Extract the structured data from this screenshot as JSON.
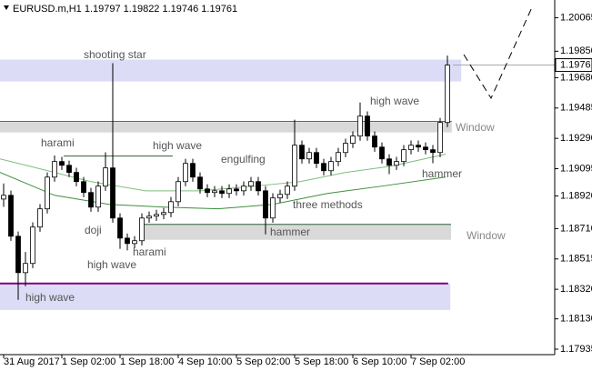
{
  "chart_data": {
    "type": "candlestick",
    "title": "EURUSD.m,H1  1.19797 1.19822 1.19746 1.19761",
    "last_price": {
      "value": 1.19761,
      "label": "1.19761"
    },
    "ylim": [
      1.179,
      1.2015
    ],
    "xlim": [
      -0.5,
      75.75
    ],
    "yticks": [
      1.20065,
      {
        "value": 1.1985,
        "label": "1.19850"
      },
      {
        "value": 1.1968,
        "label": "1.19680"
      },
      1.19485,
      {
        "value": 1.1929,
        "label": "1.19290"
      },
      1.19095,
      {
        "value": 1.1892,
        "label": "1.18920"
      },
      {
        "value": 1.1871,
        "label": "1.18710"
      },
      1.18515,
      {
        "value": 1.1832,
        "label": "1.18320"
      },
      {
        "value": 1.1813,
        "label": "1.18130"
      },
      1.17935
    ],
    "xticks": [
      {
        "value": 0,
        "label": "31 Aug 2017"
      },
      {
        "value": 8,
        "label": "1 Sep 02:00"
      },
      {
        "value": 16,
        "label": "1 Sep 18:00"
      },
      {
        "value": 24,
        "label": "4 Sep 10:00"
      },
      {
        "value": 32,
        "label": "5 Sep 02:00"
      },
      {
        "value": 40,
        "label": "5 Sep 18:00"
      },
      {
        "value": 48,
        "label": "6 Sep 10:00"
      },
      {
        "value": 56,
        "label": "7 Sep 02:00"
      }
    ],
    "open": [
      1.189,
      1.18924,
      1.18661,
      1.18427,
      1.18486,
      1.1872,
      1.18837,
      1.19041,
      1.19141,
      1.19117,
      1.19071,
      1.19012,
      1.18942,
      1.18848,
      1.18983,
      1.191,
      1.18778,
      1.18649,
      1.18614,
      1.18632,
      1.18778,
      1.1879,
      1.18801,
      1.18813,
      1.18883,
      1.19012,
      1.19129,
      1.19041,
      1.18965,
      1.18942,
      1.18953,
      1.18936,
      1.18965,
      1.18953,
      1.18983,
      1.19012,
      1.18953,
      1.18778,
      1.18907,
      1.1893,
      1.18983,
      1.19246,
      1.19158,
      1.19199,
      1.19129,
      1.19082,
      1.19141,
      1.19199,
      1.19258,
      1.19305,
      1.19433,
      1.19305,
      1.19234,
      1.19158,
      1.19117,
      1.19141,
      1.19217,
      1.19246,
      1.19234,
      1.19217,
      1.19199,
      1.19392
    ],
    "high": [
      1.19,
      1.18954,
      1.18691,
      1.1856,
      1.1875,
      1.18867,
      1.19071,
      1.1918,
      1.19171,
      1.19147,
      1.19101,
      1.19042,
      1.18972,
      1.19013,
      1.192,
      1.19773,
      1.18808,
      1.18679,
      1.18662,
      1.18808,
      1.1882,
      1.18831,
      1.18843,
      1.18913,
      1.19042,
      1.19159,
      1.19159,
      1.19071,
      1.18995,
      1.18983,
      1.18983,
      1.18995,
      1.18995,
      1.19013,
      1.19042,
      1.19042,
      1.18983,
      1.18937,
      1.1896,
      1.19013,
      1.1941,
      1.19276,
      1.19229,
      1.19229,
      1.19159,
      1.19171,
      1.19229,
      1.19288,
      1.19335,
      1.1952,
      1.19463,
      1.19335,
      1.19264,
      1.19188,
      1.19171,
      1.19247,
      1.19276,
      1.19276,
      1.19264,
      1.19247,
      1.19422,
      1.19822
    ],
    "low": [
      1.1885,
      1.18631,
      1.18252,
      1.1834,
      1.18456,
      1.1869,
      1.18807,
      1.19011,
      1.19087,
      1.19041,
      1.18982,
      1.18912,
      1.18818,
      1.18818,
      1.18953,
      1.18748,
      1.1858,
      1.1857,
      1.18584,
      1.18602,
      1.18748,
      1.1876,
      1.18771,
      1.18783,
      1.18853,
      1.18982,
      1.19011,
      1.18935,
      1.18912,
      1.18912,
      1.18906,
      1.18906,
      1.18923,
      1.18923,
      1.18953,
      1.18923,
      1.18673,
      1.18748,
      1.18877,
      1.189,
      1.18953,
      1.19128,
      1.19128,
      1.19099,
      1.19052,
      1.19052,
      1.19111,
      1.19169,
      1.19228,
      1.19275,
      1.19275,
      1.19204,
      1.19128,
      1.1906,
      1.19087,
      1.19111,
      1.19187,
      1.19204,
      1.19187,
      1.1913,
      1.19169,
      1.19362
    ],
    "close": [
      1.18924,
      1.18661,
      1.18427,
      1.18486,
      1.1872,
      1.18837,
      1.19041,
      1.19141,
      1.19117,
      1.19071,
      1.19012,
      1.18942,
      1.18848,
      1.18983,
      1.191,
      1.18778,
      1.18649,
      1.18614,
      1.18632,
      1.18778,
      1.1879,
      1.18801,
      1.18813,
      1.18883,
      1.19012,
      1.19129,
      1.19041,
      1.18965,
      1.18942,
      1.18953,
      1.18936,
      1.18965,
      1.18953,
      1.18983,
      1.19012,
      1.18953,
      1.18778,
      1.18907,
      1.1893,
      1.18983,
      1.19246,
      1.19158,
      1.19199,
      1.19129,
      1.19082,
      1.19141,
      1.19199,
      1.19258,
      1.19305,
      1.19433,
      1.19305,
      1.19234,
      1.19158,
      1.19117,
      1.19141,
      1.19217,
      1.19246,
      1.19234,
      1.19217,
      1.19199,
      1.19392,
      1.19761
    ],
    "zones": [
      {
        "from": 1.19796,
        "to": 1.19656,
        "start": -0.5,
        "end": 62.9,
        "color": "#dcdcf6"
      },
      {
        "from": 1.19392,
        "to": 1.19328,
        "start": -0.5,
        "end": 61.6,
        "color": "#d9d9d9"
      },
      {
        "from": 1.18737,
        "to": 1.18638,
        "start": 18.9,
        "end": 61.5,
        "color": "#d9d9d9"
      },
      {
        "from": 1.18357,
        "to": 1.18187,
        "start": -0.5,
        "end": 61.4,
        "color": "#dcdcf6"
      }
    ],
    "levels": [
      {
        "value": 1.18357,
        "start": -0.5,
        "end": 61.1,
        "color": "#800080"
      },
      {
        "value": 1.19398,
        "start": -0.5,
        "end": 61.6,
        "color": "#2f5f3f"
      },
      {
        "value": 1.18737,
        "start": 18.9,
        "end": 61.5,
        "color": "#2f5f3f"
      },
      {
        "value": 1.19176,
        "start": 8.25,
        "end": 23.25,
        "color": "#2f5f3f"
      }
    ],
    "series": [
      {
        "color": "#7fbf7f",
        "x": [
          -0.5,
          4.5,
          12,
          19.5,
          27,
          34.5,
          40.75,
          47,
          53.25,
          60.75
        ],
        "values": [
          1.19158,
          1.191,
          1.19012,
          1.18953,
          1.18953,
          1.18983,
          1.19012,
          1.19071,
          1.19111,
          1.19188
        ]
      },
      {
        "color": "#3f8f3f",
        "x": [
          -0.5,
          7,
          14.5,
          22,
          29.5,
          37,
          44.5,
          52,
          60.75
        ],
        "values": [
          1.19071,
          1.18924,
          1.18866,
          1.18848,
          1.18837,
          1.18866,
          1.18936,
          1.18983,
          1.19041
        ]
      }
    ],
    "annotations": [
      "shooting star",
      "harami",
      "high wave",
      "engulfing",
      "high wave",
      "Window",
      "hammer",
      "three methods",
      "doji",
      "hammer",
      "Window",
      "high wave",
      "harami",
      "high wave"
    ]
  }
}
